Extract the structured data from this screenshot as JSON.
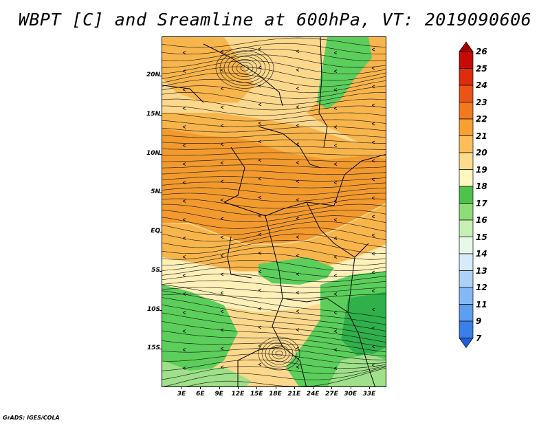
{
  "title": "WBPT [C] and Sreamline at 600hPa, VT: 2019090606",
  "map": {
    "lat_labels": [
      "20N",
      "15N",
      "10N",
      "5N",
      "EQ",
      "5S",
      "10S",
      "15S"
    ],
    "lon_labels": [
      "3E",
      "6E",
      "9E",
      "12E",
      "15E",
      "18E",
      "21E",
      "24E",
      "27E",
      "30E",
      "33E"
    ],
    "fill_colors": {
      "warm": "#f29a2e",
      "mid": "#f8b54c",
      "light": "#fcd88c",
      "pale": "#fdf0b8",
      "green_light": "#9fe08a",
      "green": "#5bce5b",
      "green_dark": "#2fb04b"
    }
  },
  "colorbar": {
    "labels": [
      "7",
      "9",
      "11",
      "12",
      "13",
      "14",
      "15",
      "16",
      "17",
      "18",
      "19",
      "20",
      "21",
      "22",
      "23",
      "24",
      "25",
      "26"
    ],
    "colors": [
      "#1f5fd8",
      "#3a80e8",
      "#5e9ff0",
      "#84b9f5",
      "#acd2f8",
      "#d6ecfb",
      "#e8f8e8",
      "#c6f0b4",
      "#8edc78",
      "#4ec24a",
      "#fff6c0",
      "#fddb8c",
      "#fbbe58",
      "#f8a032",
      "#f27a1c",
      "#ea5414",
      "#de2c0c",
      "#c80a05",
      "#a80000"
    ]
  },
  "footer": "GrADS: IGES/COLA"
}
